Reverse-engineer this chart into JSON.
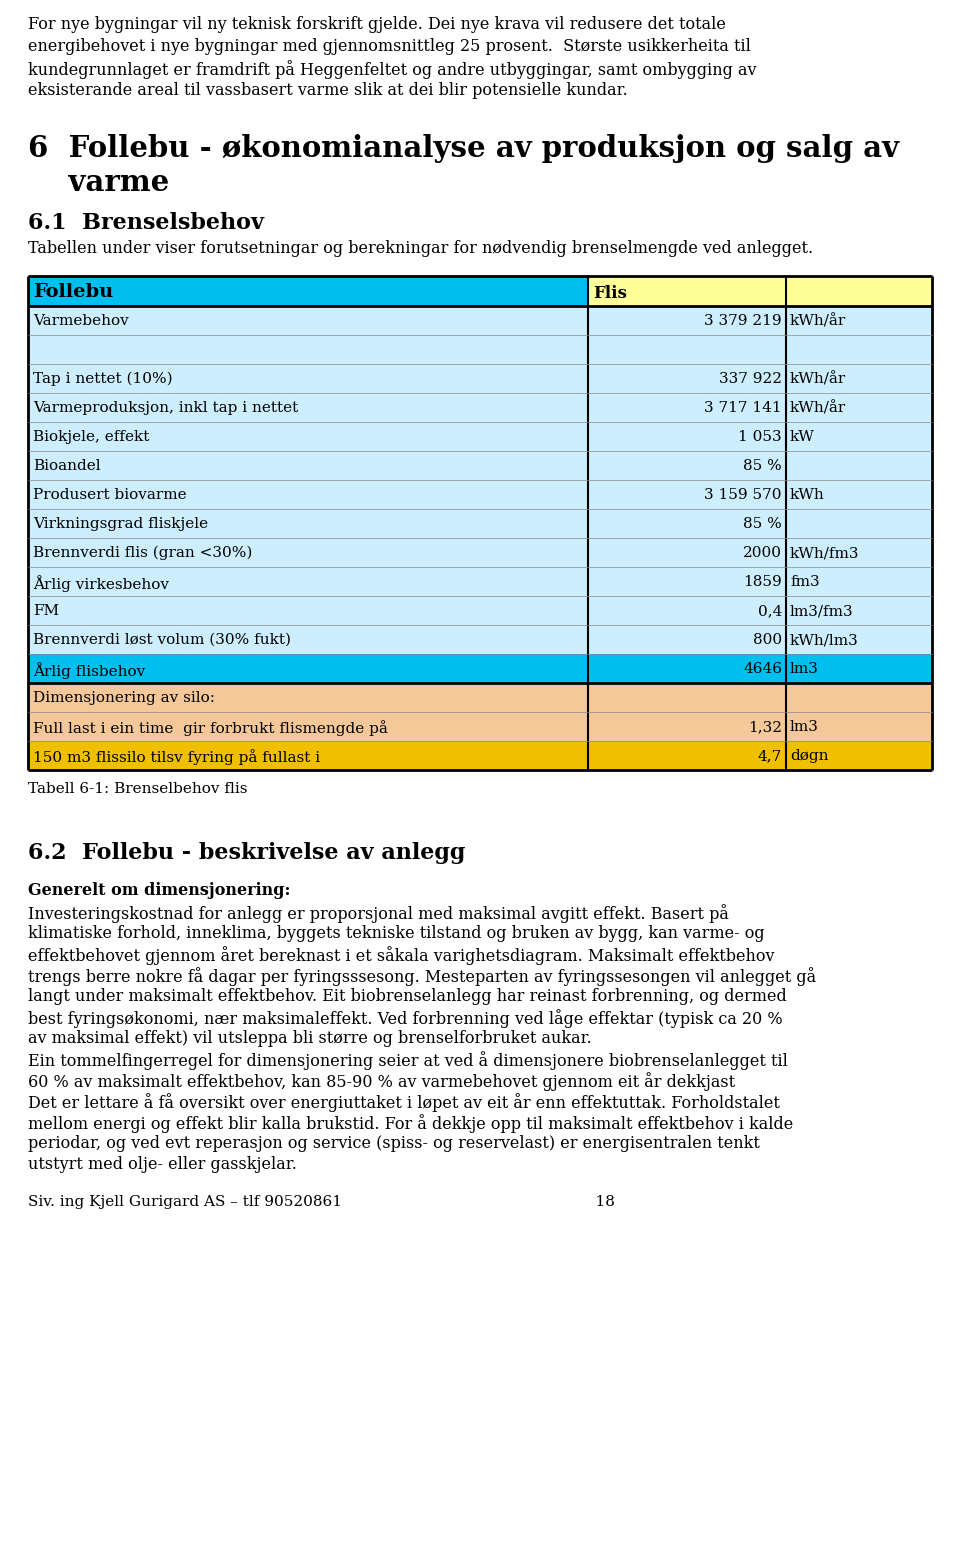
{
  "top_para_lines": [
    "For nye bygningar vil ny teknisk forskrift gjelde. Dei nye krava vil redusere det totale",
    "energibehovet i nye bygningar med gjennomsnittleg 25 prosent.  Største usikkerheita til",
    "kundegrunnlaget er framdrift på Heggenfeltet og andre utbyggingar, samt ombygging av",
    "eksisterande areal til vassbasert varme slik at dei blir potensielle kundar."
  ],
  "heading1_line1": "6  Follebu - økonomianalyse av produksjon og salg av",
  "heading1_line2": "    varme",
  "heading2": "6.1  Brenselsbehov",
  "sub2_lines": [
    "Tabellen under viser forutsetningar og berekningar for nødvendig brenselmengde ved anlegget."
  ],
  "tbl_hdr_col0": "Follebu",
  "tbl_hdr_col12": "Flis",
  "tbl_col0_bg": "#00bfef",
  "tbl_col12_bg": "#ffff99",
  "tbl_rows": [
    {
      "label": "Varmebehov",
      "value": "3 379 219",
      "unit": "kWh/år",
      "bg": "#cceeff"
    },
    {
      "label": "",
      "value": "",
      "unit": "",
      "bg": "#cceeff"
    },
    {
      "label": "Tap i nettet (10%)",
      "value": "337 922",
      "unit": "kWh/år",
      "bg": "#cceeff"
    },
    {
      "label": "Varmeproduksjon, inkl tap i nettet",
      "value": "3 717 141",
      "unit": "kWh/år",
      "bg": "#cceeff"
    },
    {
      "label": "Biokjele, effekt",
      "value": "1 053",
      "unit": "kW",
      "bg": "#cceeff"
    },
    {
      "label": "Bioandel",
      "value": "85 %",
      "unit": "",
      "bg": "#cceeff"
    },
    {
      "label": "Produsert biovarme",
      "value": "3 159 570",
      "unit": "kWh",
      "bg": "#cceeff"
    },
    {
      "label": "Virkningsgrad fliskjele",
      "value": "85 %",
      "unit": "",
      "bg": "#cceeff"
    },
    {
      "label": "Brennverdi flis (gran <30%)",
      "value": "2000",
      "unit": "kWh/fm3",
      "bg": "#cceeff"
    },
    {
      "label": "Årlig virkesbehov",
      "value": "1859",
      "unit": "fm3",
      "bg": "#cceeff"
    },
    {
      "label": "FM",
      "value": "0,4",
      "unit": "lm3/fm3",
      "bg": "#cceeff"
    },
    {
      "label": "Brennverdi løst volum (30% fukt)",
      "value": "800",
      "unit": "kWh/lm3",
      "bg": "#cceeff"
    },
    {
      "label": "Årlig flisbehov",
      "value": "4646",
      "unit": "lm3",
      "bg": "#00bfef"
    },
    {
      "label": "Dimensjonering av silo:",
      "value": "",
      "unit": "",
      "bg": "#f5c89a"
    },
    {
      "label": "Full last i ein time  gir forbrukt flismengde på",
      "value": "1,32",
      "unit": "lm3",
      "bg": "#f5c89a"
    },
    {
      "label": "150 m3 flissilo tilsv fyring på fullast i",
      "value": "4,7",
      "unit": "døgn",
      "bg": "#f0c000"
    }
  ],
  "tbl_caption": "Tabell 6-1: Brenselbehov flis",
  "heading3": "6.2  Follebu - beskrivelse av anlegg",
  "sub3_bold": "Generelt om dimensjonering:",
  "body3_lines": [
    "Investeringskostnad for anlegg er proporsjonal med maksimal avgitt effekt. Basert på",
    "klimatiske forhold, inneklima, byggets tekniske tilstand og bruken av bygg, kan varme- og",
    "effektbehovet gjennom året bereknast i et såkala varighetsdiagram. Maksimalt effektbehov",
    "trengs berre nokre få dagar per fyringsssesong. Mesteparten av fyringssesongen vil anlegget gå",
    "langt under maksimalt effektbehov. Eit biobrenselanlegg har reinast forbrenning, og dermed",
    "best fyringsøkonomi, nær maksimaleffekt. Ved forbrenning ved låge effektar (typisk ca 20 %",
    "av maksimal effekt) vil utsleppa bli større og brenselforbruket aukar.",
    "Ein tommelfingerregel for dimensjonering seier at ved å dimensjonere biobrenselanlegget til",
    "60 % av maksimalt effektbehov, kan 85-90 % av varmebehovet gjennom eit år dekkjast",
    "Det er lettare å få oversikt over energiuttaket i løpet av eit år enn effektuttak. Forholdstalet",
    "mellom energi og effekt blir kalla brukstid. For å dekkje opp til maksimalt effektbehov i kalde",
    "periodar, og ved evt reperasjon og service (spiss- og reservelast) er energisentralen tenkt",
    "utstyrt med olje- eller gasskjelar."
  ],
  "footer": "Siv. ing Kjell Gurigard AS – tlf 90520861                                                    18"
}
